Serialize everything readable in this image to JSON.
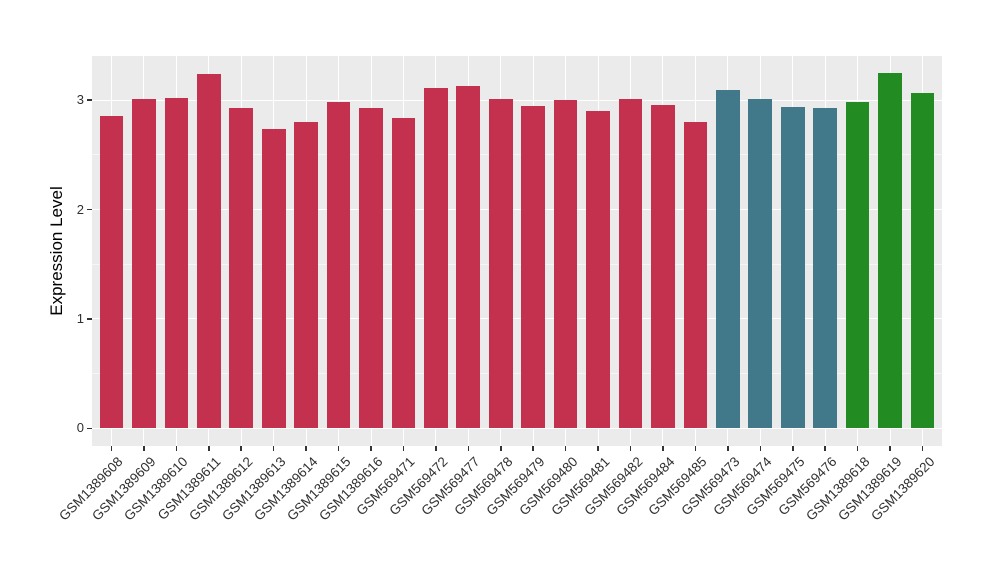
{
  "chart_data": {
    "type": "bar",
    "title": "",
    "xlabel": "",
    "ylabel": "Expression Level",
    "categories": [
      "GSM1389608",
      "GSM1389609",
      "GSM1389610",
      "GSM1389611",
      "GSM1389612",
      "GSM1389613",
      "GSM1389614",
      "GSM1389615",
      "GSM1389616",
      "GSM569471",
      "GSM569472",
      "GSM569477",
      "GSM569478",
      "GSM569479",
      "GSM569480",
      "GSM569481",
      "GSM569482",
      "GSM569484",
      "GSM569485",
      "GSM569473",
      "GSM569474",
      "GSM569475",
      "GSM569476",
      "GSM1389618",
      "GSM1389619",
      "GSM1389620"
    ],
    "values": [
      2.86,
      3.01,
      3.02,
      3.24,
      2.93,
      2.74,
      2.8,
      2.98,
      2.93,
      2.84,
      3.11,
      3.13,
      3.01,
      2.95,
      3.0,
      2.9,
      3.01,
      2.96,
      2.8,
      3.09,
      3.01,
      2.94,
      2.93,
      2.98,
      3.25,
      3.07
    ],
    "bar_groups": [
      0,
      0,
      0,
      0,
      0,
      0,
      0,
      0,
      0,
      0,
      0,
      0,
      0,
      0,
      0,
      0,
      0,
      0,
      0,
      1,
      1,
      1,
      1,
      2,
      2,
      2
    ],
    "group_colors": [
      "#C4314E",
      "#41798A",
      "#228B22"
    ],
    "yticks": [
      0,
      1,
      2,
      3
    ],
    "minor_yticks": [
      0.5,
      1.5,
      2.5
    ],
    "ylim": [
      0,
      3.25
    ],
    "ydomain_display": [
      -0.162,
      3.404
    ],
    "grid": "on",
    "legend": "none",
    "panel_background": "#EBEBEB",
    "gridline_color": "#FFFFFF",
    "axis_text_color": "#303030"
  }
}
